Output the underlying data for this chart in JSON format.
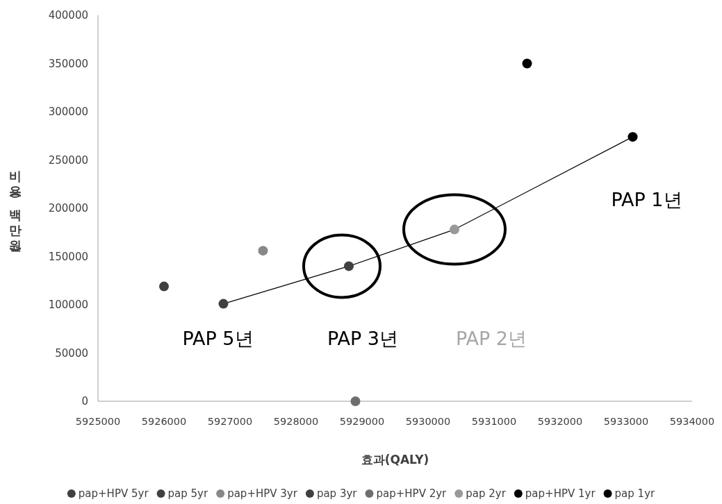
{
  "chart_data": {
    "type": "scatter",
    "xlabel": "효과(QALY)",
    "ylabel": "비용(백만원)",
    "xlim": [
      5925000,
      5934000
    ],
    "xticks": [
      5925000,
      5926000,
      5927000,
      5928000,
      5929000,
      5930000,
      5931000,
      5932000,
      5933000,
      5934000
    ],
    "ylim": [
      0,
      400000
    ],
    "yticks": [
      0,
      50000,
      100000,
      150000,
      200000,
      250000,
      300000,
      350000,
      400000
    ],
    "grid": false,
    "legend": "bottom",
    "marker": "circle",
    "series": [
      {
        "name": "pap+HPV 5yr",
        "color": "#404040",
        "x": [
          5926000
        ],
        "values": [
          119000
        ]
      },
      {
        "name": "pap 5yr",
        "color": "#404040",
        "x": [
          5926900
        ],
        "values": [
          101000
        ]
      },
      {
        "name": "pap+HPV 3yr",
        "color": "#888888",
        "x": [
          5927500
        ],
        "values": [
          156000
        ]
      },
      {
        "name": "pap 3yr",
        "color": "#404040",
        "x": [
          5928800
        ],
        "values": [
          140000
        ]
      },
      {
        "name": "pap+HPV 2yr",
        "color": "#6e6e6e",
        "x": [
          5928900
        ],
        "values": [
          0
        ]
      },
      {
        "name": "pap 2yr",
        "color": "#999999",
        "x": [
          5930400
        ],
        "values": [
          178000
        ]
      },
      {
        "name": "pap+HPV 1yr",
        "color": "#000000",
        "x": [
          5931500
        ],
        "values": [
          350000
        ]
      },
      {
        "name": "pap 1yr",
        "color": "#000000",
        "x": [
          5933100
        ],
        "values": [
          274000
        ]
      },
      {
        "type": "line",
        "color": "#000000",
        "marker": "none",
        "x": [
          5926900,
          5928800,
          5930400,
          5933100
        ],
        "values": [
          101000,
          140000,
          178000,
          274000
        ]
      }
    ],
    "annotations": [
      "PAP 5년",
      "PAP 3년",
      "PAP 2년",
      "PAP 1년"
    ]
  }
}
